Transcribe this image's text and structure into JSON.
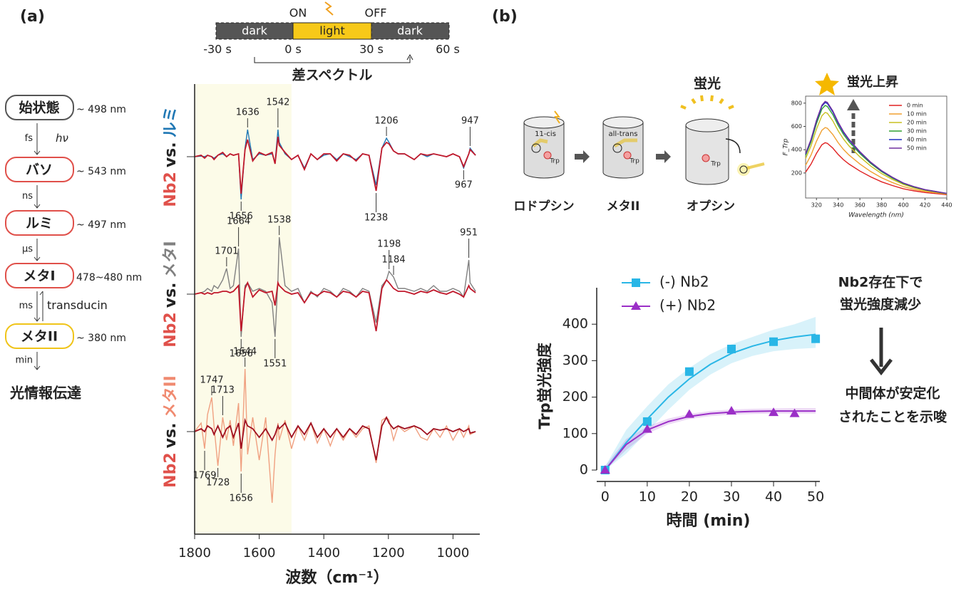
{
  "labels": {
    "a": "(a)",
    "b": "(b)"
  },
  "timeline": {
    "on": "ON",
    "off": "OFF",
    "segments": [
      "dark",
      "light",
      "dark"
    ],
    "times": [
      "-30 s",
      "0 s",
      "30 s",
      "60 s"
    ],
    "caption": "差スペクトル"
  },
  "scheme": {
    "nodes": [
      {
        "label": "始状態",
        "wavelength": "~ 498 nm",
        "color": "#555555"
      },
      {
        "label": "バソ",
        "wavelength": "~ 543 nm",
        "color": "#e0504a"
      },
      {
        "label": "ルミ",
        "wavelength": "~ 497 nm",
        "color": "#e0504a"
      },
      {
        "label": "メタI",
        "wavelength": "478~480 nm",
        "color": "#e0504a"
      },
      {
        "label": "メタII",
        "wavelength": "~ 380 nm",
        "color": "#f0c419"
      }
    ],
    "steps": [
      {
        "time": "fs",
        "note": "hν"
      },
      {
        "time": "ns"
      },
      {
        "time": "μs"
      },
      {
        "time": "ms",
        "note": "transducin"
      },
      {
        "time": "min"
      }
    ],
    "outcome": "光情報伝達"
  },
  "panel_b": {
    "states": [
      "ロドプシン",
      "メタII",
      "オプシン"
    ],
    "isomers": [
      "11-cis",
      "all-trans"
    ],
    "residue": "Trp",
    "fluorescence": "蛍光",
    "rise": "蛍光上昇",
    "notes": [
      "Nb2存在下で",
      "蛍光強度減少",
      "中間体が安定化",
      "されたことを示唆"
    ]
  },
  "chart_data": [
    {
      "type": "spectra",
      "xlabel": "波数（cm⁻¹）",
      "xlim": [
        1800,
        917
      ],
      "xticks": [
        1800,
        1600,
        1400,
        1200,
        1000
      ],
      "ylim": [
        -2.5,
        2.5
      ],
      "highlight": [
        1800,
        1500
      ],
      "x": [
        1800,
        1780,
        1769,
        1760,
        1747,
        1740,
        1728,
        1713,
        1701,
        1690,
        1680,
        1664,
        1656,
        1644,
        1636,
        1620,
        1600,
        1580,
        1560,
        1551,
        1542,
        1538,
        1520,
        1500,
        1480,
        1460,
        1440,
        1420,
        1400,
        1380,
        1360,
        1340,
        1320,
        1300,
        1280,
        1260,
        1238,
        1220,
        1206,
        1198,
        1184,
        1170,
        1150,
        1120,
        1100,
        1080,
        1060,
        1040,
        1020,
        1000,
        980,
        967,
        951,
        947,
        930
      ],
      "panels": [
        {
          "vs": "vs.",
          "peaks": [
            1636,
            1542,
            1206,
            947,
            1656,
            1238,
            967
          ],
          "series": [
            {
              "name": "ルミ",
              "color": "#1f77b4",
              "values": [
                0,
                0.02,
                0,
                0.05,
                0,
                -0.05,
                0.05,
                0.1,
                0,
                0.1,
                0.05,
                0.1,
                -1.5,
                0.3,
                0.95,
                -0.1,
                0.1,
                0.05,
                0.1,
                -0.2,
                0.95,
                0.5,
                0.1,
                -0.1,
                0.05,
                -0.4,
                0.1,
                -0.1,
                0.05,
                0.1,
                -0.1,
                0.1,
                0,
                -0.1,
                0.1,
                0.05,
                -1.0,
                0.3,
                0.65,
                0.5,
                0.2,
                0.1,
                0.1,
                -0.1,
                0.1,
                0,
                0.1,
                0.05,
                0,
                0.1,
                0,
                -0.4,
                0.1,
                0.3,
                0.05
              ]
            },
            {
              "name": "Nb2",
              "color": "#c0182b",
              "values": [
                0,
                0.05,
                -0.05,
                0.05,
                0,
                -0.1,
                0.05,
                0.15,
                0,
                0.1,
                0.05,
                0.1,
                -1.3,
                0.25,
                0.6,
                -0.15,
                0.15,
                0.05,
                0.15,
                -0.25,
                0.7,
                0.4,
                0.15,
                -0.1,
                0.05,
                -0.45,
                0.1,
                -0.1,
                0.1,
                0.1,
                -0.15,
                0.1,
                0.05,
                -0.15,
                0.1,
                0.05,
                -1.2,
                0.3,
                0.5,
                0.45,
                0.2,
                0.1,
                0.1,
                -0.1,
                0.1,
                0.05,
                0.1,
                0.05,
                0,
                0.1,
                0,
                -0.35,
                0.1,
                0.25,
                0.05
              ]
            }
          ]
        },
        {
          "vs": "vs.",
          "peaks": [
            1701,
            1664,
            1538,
            1198,
            1184,
            951,
            1656,
            1551
          ],
          "series": [
            {
              "name": "メタI",
              "color": "#808080",
              "values": [
                0,
                0.05,
                0.1,
                0.2,
                0.1,
                0.3,
                0.2,
                0.5,
                0.9,
                0.2,
                0.3,
                1.6,
                -1.5,
                0.3,
                0.4,
                0.1,
                0.2,
                0.1,
                -0.3,
                -1.5,
                0.5,
                2.0,
                0.3,
                0.1,
                0.2,
                -0.3,
                0.1,
                -0.1,
                0.2,
                0.1,
                -0.1,
                0.2,
                0.1,
                -0.1,
                0.2,
                0.1,
                -1.0,
                0.3,
                0.5,
                0.8,
                0.6,
                0.2,
                0.2,
                0.1,
                0.2,
                0.1,
                0.3,
                0.1,
                0.1,
                0.2,
                0.1,
                -0.1,
                1.2,
                0.4,
                0.1
              ]
            },
            {
              "name": "Nb2",
              "color": "#c0182b",
              "values": [
                0,
                0.05,
                0,
                0.05,
                0,
                0.05,
                0.05,
                0.1,
                0.1,
                0.05,
                0.1,
                0.3,
                -1.3,
                0.2,
                0.4,
                -0.1,
                0.15,
                0.05,
                0.1,
                -0.4,
                0.4,
                0.3,
                0.1,
                0,
                0.05,
                -0.3,
                0.05,
                -0.05,
                0.1,
                0.05,
                -0.1,
                0.1,
                0.05,
                -0.1,
                0.1,
                0.05,
                -1.3,
                0.2,
                0.5,
                0.4,
                0.2,
                0.1,
                0.1,
                0,
                0.1,
                0.05,
                0.15,
                0.05,
                0,
                0.1,
                0,
                -0.1,
                0.3,
                0.2,
                0.05
              ]
            }
          ]
        },
        {
          "vs": "vs.",
          "peaks": [
            1747,
            1713,
            1644,
            1769,
            1728,
            1656
          ],
          "series": [
            {
              "name": "メタII",
              "color": "#f0a080",
              "values": [
                0,
                0.3,
                -0.6,
                0.6,
                1.2,
                0.2,
                -1.2,
                0.5,
                -0.3,
                0.4,
                -0.5,
                1.0,
                -1.4,
                2.2,
                -0.8,
                0.5,
                -1.0,
                0.5,
                -2.5,
                -0.8,
                0.3,
                -0.3,
                0.4,
                -0.6,
                0.2,
                -0.3,
                0.3,
                -0.4,
                0.1,
                -0.5,
                0.1,
                -0.3,
                0.1,
                -0.2,
                0.1,
                0.2,
                -1.1,
                0.4,
                0.5,
                0.4,
                -0.3,
                0.2,
                0,
                0.2,
                -0.2,
                -0.3,
                0.1,
                -0.2,
                0.2,
                -0.3,
                0.1,
                -0.2,
                0.2,
                -0.1,
                0
              ]
            },
            {
              "name": "Nb2",
              "color": "#a01020",
              "values": [
                0,
                0.1,
                0,
                0.2,
                0.1,
                -0.1,
                0.2,
                -0.2,
                0.1,
                0.2,
                -0.2,
                0.3,
                -0.6,
                0.4,
                0.2,
                0.1,
                -0.2,
                0.1,
                -0.3,
                -0.1,
                0.2,
                0.1,
                0.3,
                -0.2,
                0.2,
                -0.1,
                0.3,
                -0.2,
                0.1,
                -0.2,
                0.1,
                -0.2,
                0.1,
                -0.1,
                0.2,
                0.1,
                -1.0,
                0.2,
                0.5,
                0.3,
                0.1,
                0.2,
                0.1,
                0.2,
                0.1,
                -0.1,
                0.1,
                0.05,
                0.1,
                0,
                0.1,
                0,
                0.1,
                -0.05,
                0
              ]
            }
          ]
        }
      ]
    },
    {
      "type": "line",
      "xlabel": "Wavelength (nm)",
      "ylabel": "F_Trp",
      "xlim": [
        310,
        440
      ],
      "ylim": [
        -15,
        860
      ],
      "xticks": [
        320,
        340,
        360,
        380,
        400,
        420,
        440
      ],
      "yticks": [
        200,
        400,
        600,
        800
      ],
      "x": [
        310,
        315,
        320,
        325,
        328,
        330,
        335,
        340,
        345,
        350,
        360,
        370,
        380,
        390,
        400,
        410,
        420,
        430,
        440
      ],
      "series": [
        {
          "name": "0 min",
          "color": "#e02020",
          "values": [
            207,
            276,
            368,
            442,
            460,
            455,
            414,
            359,
            313,
            276,
            216,
            166,
            124,
            92,
            64,
            46,
            32,
            23,
            14
          ]
        },
        {
          "name": "10 min",
          "color": "#f0a030",
          "values": [
            266,
            354,
            472,
            566,
            590,
            584,
            531,
            460,
            401,
            354,
            277,
            212,
            159,
            118,
            83,
            59,
            41,
            30,
            18
          ]
        },
        {
          "name": "20 min",
          "color": "#c8c020",
          "values": [
            324,
            432,
            576,
            691,
            720,
            713,
            648,
            562,
            490,
            432,
            338,
            259,
            194,
            144,
            101,
            72,
            50,
            36,
            22
          ]
        },
        {
          "name": "30 min",
          "color": "#30a030",
          "values": [
            351,
            468,
            624,
            749,
            780,
            772,
            702,
            608,
            530,
            468,
            367,
            281,
            211,
            156,
            109,
            78,
            55,
            39,
            23
          ]
        },
        {
          "name": "40 min",
          "color": "#2030c0",
          "values": [
            362,
            483,
            644,
            773,
            805,
            797,
            725,
            628,
            547,
            483,
            378,
            290,
            217,
            161,
            113,
            81,
            56,
            40,
            24
          ]
        },
        {
          "name": "50 min",
          "color": "#7030a0",
          "values": [
            367,
            489,
            652,
            782,
            815,
            807,
            734,
            636,
            554,
            489,
            383,
            293,
            220,
            163,
            114,
            82,
            57,
            41,
            24
          ]
        }
      ]
    },
    {
      "type": "scatter",
      "xlabel": "時間 (min)",
      "ylabel": "Trp蛍光強度",
      "xlim": [
        -2,
        51
      ],
      "ylim": [
        0,
        500
      ],
      "xticks": [
        0,
        10,
        20,
        30,
        40,
        50
      ],
      "yticks": [
        0,
        100,
        200,
        300,
        400
      ],
      "legend": "upper-left",
      "series": [
        {
          "name": "(-) Nb2",
          "color": "#29b6e6",
          "marker": "square",
          "x": [
            0,
            10,
            20,
            30,
            40,
            50
          ],
          "values": [
            0,
            133,
            270,
            332,
            352,
            360
          ],
          "fit": {
            "x": [
              0,
              5,
              10,
              15,
              20,
              25,
              30,
              35,
              40,
              45,
              50
            ],
            "values": [
              0,
              75,
              140,
              200,
              250,
              290,
              320,
              340,
              355,
              365,
              372
            ],
            "lower": [
              0,
              45,
              105,
              165,
              220,
              262,
              293,
              313,
              326,
              332,
              335
            ],
            "upper": [
              10,
              110,
              175,
              235,
              280,
              318,
              345,
              365,
              385,
              400,
              420
            ]
          }
        },
        {
          "name": "(+) Nb2",
          "color": "#9b2fc7",
          "marker": "triangle",
          "x": [
            0,
            10,
            20,
            30,
            40,
            45
          ],
          "values": [
            0,
            112,
            153,
            162,
            158,
            155
          ],
          "fit": {
            "x": [
              0,
              5,
              10,
              15,
              20,
              25,
              30,
              35,
              40,
              45,
              50
            ],
            "values": [
              0,
              70,
              110,
              133,
              147,
              155,
              159,
              161,
              162,
              162,
              162
            ],
            "lower": [
              0,
              55,
              100,
              125,
              140,
              148,
              152,
              154,
              155,
              155,
              155
            ],
            "upper": [
              10,
              85,
              120,
              141,
              154,
              162,
              166,
              168,
              169,
              170,
              170
            ]
          }
        }
      ]
    }
  ]
}
